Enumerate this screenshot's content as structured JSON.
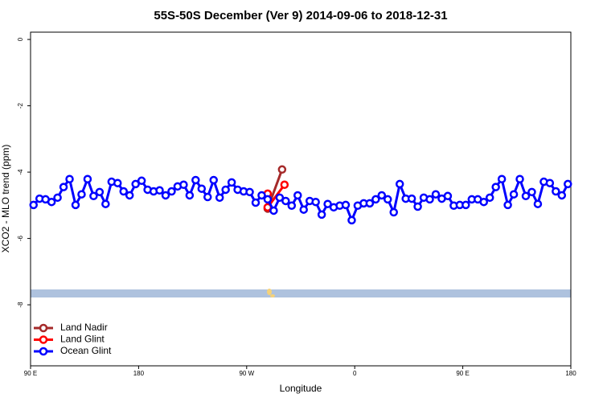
{
  "chart_data": {
    "type": "line",
    "title": "55S-50S December (Ver 9)   2014-09-06 to 2018-12-31",
    "xlabel": "Longitude",
    "ylabel": "XCO2 - MLO trend (ppm)",
    "xlim": [
      90,
      540
    ],
    "ylim": [
      -9.84,
      0.22
    ],
    "xticks": [
      {
        "value": 90,
        "label": "90 E"
      },
      180,
      {
        "value": 270,
        "label": "90 W"
      },
      {
        "value": 360,
        "label": "0"
      },
      {
        "value": 450,
        "label": "90 E"
      },
      {
        "value": 540,
        "label": "180"
      }
    ],
    "yticks": [
      0,
      -2,
      -4,
      -6,
      -8
    ],
    "legend": "bottom-left",
    "series": [
      {
        "name": "Land Nadir",
        "color": "#a52a2a",
        "x": [
          287.5,
          299.5
        ],
        "values": [
          -5.1,
          -3.92
        ]
      },
      {
        "name": "Land Glint",
        "color": "#ff0000",
        "x": [
          287.5,
          287.5,
          301.5
        ],
        "values": [
          -4.65,
          -5.06,
          -4.38
        ]
      },
      {
        "name": "Ocean Glint",
        "color": "#0000ff",
        "x": [
          92.5,
          97.5,
          102.5,
          107.5,
          112.5,
          117.5,
          122.5,
          127.5,
          132.5,
          137.5,
          142.5,
          147.5,
          152.5,
          157.5,
          162.5,
          167.5,
          172.5,
          177.5,
          182.5,
          187.5,
          192.5,
          197.5,
          202.5,
          207.5,
          212.5,
          217.5,
          222.5,
          227.5,
          232.5,
          237.5,
          242.5,
          247.5,
          252.5,
          257.5,
          262.5,
          267.5,
          272.5,
          277.5,
          282.5,
          287.5,
          292.5,
          297.5,
          302.5,
          307.5,
          312.5,
          317.5,
          322.5,
          327.5,
          332.5,
          337.5,
          342.5,
          347.5,
          352.5,
          357.5,
          362.5,
          367.5,
          372.5,
          377.5,
          382.5,
          387.5,
          392.5,
          397.5,
          402.5,
          407.5,
          412.5,
          417.5,
          422.5,
          427.5,
          432.5,
          437.5,
          442.5,
          447.5,
          452.5,
          457.5,
          462.5,
          467.5,
          472.5,
          477.5,
          482.5,
          487.5,
          492.5,
          497.5,
          502.5,
          507.5,
          512.5,
          517.5,
          522.5,
          527.5,
          532.5,
          537.5
        ],
        "values": [
          -4.99,
          -4.8,
          -4.82,
          -4.9,
          -4.77,
          -4.45,
          -4.21,
          -4.99,
          -4.67,
          -4.21,
          -4.72,
          -4.6,
          -4.96,
          -4.29,
          -4.33,
          -4.58,
          -4.7,
          -4.36,
          -4.26,
          -4.53,
          -4.58,
          -4.55,
          -4.7,
          -4.58,
          -4.43,
          -4.38,
          -4.7,
          -4.24,
          -4.5,
          -4.75,
          -4.24,
          -4.77,
          -4.53,
          -4.31,
          -4.53,
          -4.58,
          -4.6,
          -4.92,
          -4.7,
          -4.82,
          -5.16,
          -4.77,
          -4.87,
          -5.01,
          -4.7,
          -5.13,
          -4.87,
          -4.9,
          -5.28,
          -4.96,
          -5.06,
          -5.01,
          -4.99,
          -5.45,
          -5.01,
          -4.94,
          -4.94,
          -4.82,
          -4.7,
          -4.82,
          -5.21,
          -4.36,
          -4.8,
          -4.8,
          -5.04,
          -4.77,
          -4.82,
          -4.67,
          -4.8,
          -4.72,
          -5.01,
          -4.99,
          -4.99,
          -4.82,
          -4.82,
          -4.9,
          -4.77,
          -4.45,
          -4.21,
          -4.99,
          -4.67,
          -4.21,
          -4.72,
          -4.6,
          -4.96,
          -4.29,
          -4.33,
          -4.58,
          -4.7,
          -4.36
        ]
      }
    ]
  }
}
